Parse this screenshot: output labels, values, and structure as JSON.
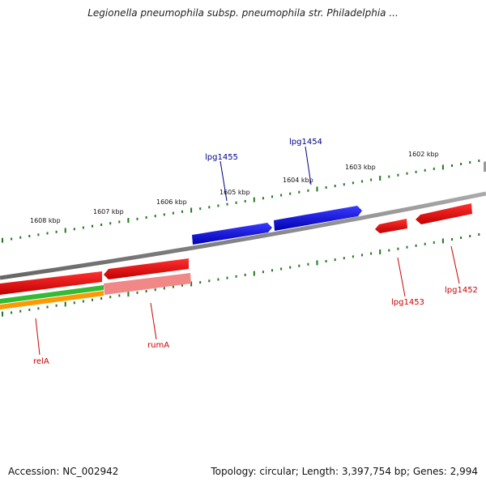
{
  "title": "Legionella pneumophila subsp. pneumophila str. Philadelphia ...",
  "footer": {
    "accession": "Accession: NC_002942",
    "summary": "Topology: circular; Length: 3,397,754 bp; Genes: 2,994"
  },
  "scale_labels": [
    "1608 kbp",
    "1607 kbp",
    "1606 kbp",
    "1605 kbp",
    "1604 kbp",
    "1603 kbp",
    "1602 kbp"
  ],
  "genes": [
    {
      "name": "lpg1455",
      "strand": "forward",
      "color": "#0000ee"
    },
    {
      "name": "lpg1454",
      "strand": "forward",
      "color": "#0000ee"
    },
    {
      "name": "lpg1453",
      "strand": "reverse",
      "color": "#ee0000"
    },
    {
      "name": "lpg1452",
      "strand": "reverse",
      "color": "#ee0000"
    },
    {
      "name": "relA",
      "strand": "reverse",
      "color": "#ee0000"
    },
    {
      "name": "rumA",
      "strand": "reverse",
      "color": "#ee0000"
    }
  ],
  "colors": {
    "backbone": "#888888",
    "ticks": "#227722",
    "label_forward": "#000088",
    "label_reverse": "#cc0000",
    "track_green": "#33bb33",
    "track_orange": "#ff9900",
    "track_pink": "#f08888"
  }
}
